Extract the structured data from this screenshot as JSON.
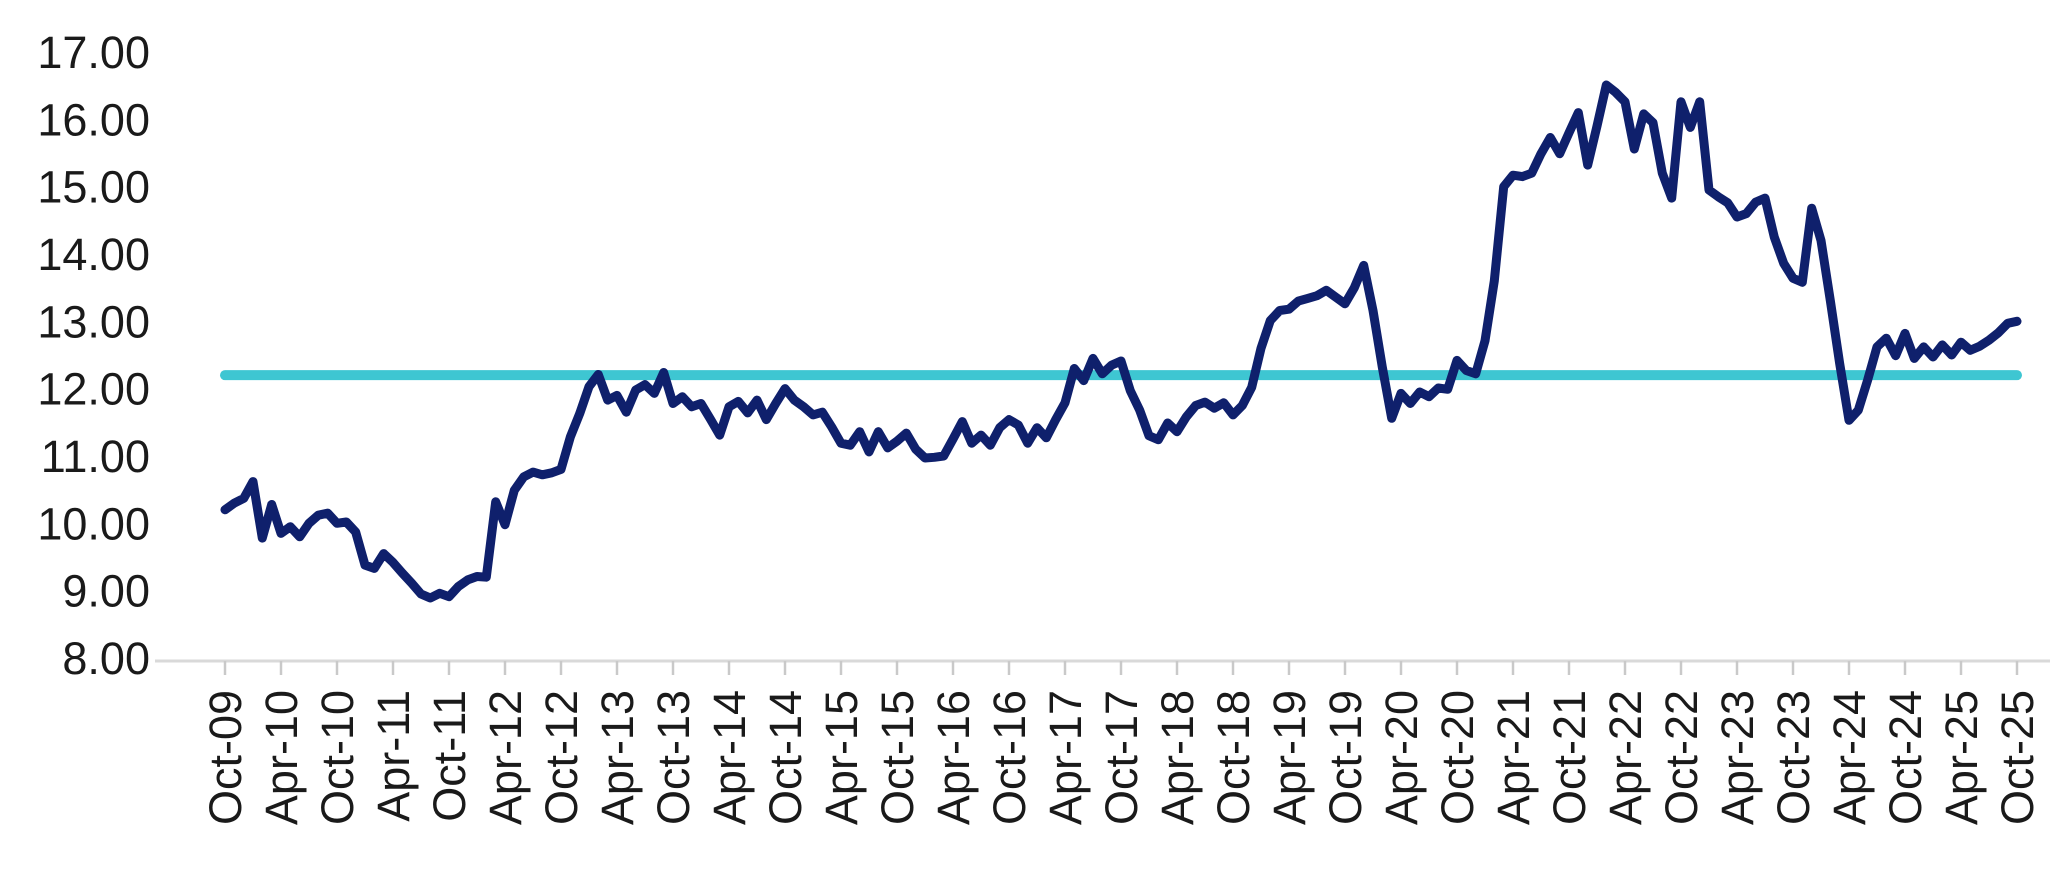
{
  "chart_data": {
    "type": "line",
    "title": "",
    "xlabel": "",
    "ylabel": "",
    "x_interval": "monthly",
    "x_start": "Oct-09",
    "x_end": "Oct-25",
    "ylim": [
      8,
      17
    ],
    "grid": false,
    "legend": "none",
    "ytick_labels": [
      "17.00",
      "16.00",
      "15.00",
      "14.00",
      "13.00",
      "12.00",
      "11.00",
      "10.00",
      "9.00",
      "8.00"
    ],
    "xtick_labels": [
      "Oct-09",
      "Apr-10",
      "Oct-10",
      "Apr-11",
      "Oct-11",
      "Apr-12",
      "Oct-12",
      "Apr-13",
      "Oct-13",
      "Apr-14",
      "Oct-14",
      "Apr-15",
      "Oct-15",
      "Apr-16",
      "Oct-16",
      "Apr-17",
      "Oct-17",
      "Apr-18",
      "Oct-18",
      "Apr-19",
      "Oct-19",
      "Apr-20",
      "Oct-20",
      "Apr-21",
      "Oct-21",
      "Apr-22",
      "Oct-22",
      "Apr-23",
      "Oct-23",
      "Apr-24",
      "Oct-24",
      "Apr-25",
      "Oct-25"
    ],
    "series": [
      {
        "name": "monthly-series",
        "color": "#0F206C",
        "values": [
          10.2,
          10.3,
          10.37,
          10.62,
          9.78,
          10.28,
          9.85,
          9.95,
          9.8,
          10.0,
          10.12,
          10.15,
          10.0,
          10.02,
          9.87,
          9.38,
          9.33,
          9.55,
          9.42,
          9.26,
          9.11,
          8.95,
          8.89,
          8.96,
          8.91,
          9.06,
          9.16,
          9.21,
          9.2,
          10.32,
          9.98,
          10.49,
          10.69,
          10.76,
          10.72,
          10.75,
          10.8,
          11.28,
          11.63,
          12.03,
          12.21,
          11.83,
          11.9,
          11.65,
          11.98,
          12.06,
          11.93,
          12.24,
          11.78,
          11.88,
          11.73,
          11.78,
          11.55,
          11.31,
          11.73,
          11.81,
          11.64,
          11.83,
          11.54,
          11.78,
          12.0,
          11.83,
          11.73,
          11.61,
          11.65,
          11.43,
          11.19,
          11.16,
          11.36,
          11.06,
          11.36,
          11.12,
          11.22,
          11.34,
          11.1,
          10.97,
          10.98,
          11.0,
          11.25,
          11.51,
          11.19,
          11.31,
          11.16,
          11.42,
          11.54,
          11.46,
          11.19,
          11.42,
          11.27,
          11.54,
          11.79,
          12.3,
          12.12,
          12.45,
          12.22,
          12.35,
          12.41,
          11.97,
          11.68,
          11.3,
          11.24,
          11.49,
          11.36,
          11.58,
          11.75,
          11.8,
          11.71,
          11.79,
          11.61,
          11.75,
          12.02,
          12.6,
          13.01,
          13.16,
          13.18,
          13.3,
          13.34,
          13.38,
          13.46,
          13.36,
          13.26,
          13.5,
          13.83,
          13.16,
          12.32,
          11.56,
          11.93,
          11.78,
          11.95,
          11.88,
          12.01,
          11.99,
          12.42,
          12.27,
          12.22,
          12.71,
          13.6,
          15.0,
          15.17,
          15.15,
          15.2,
          15.49,
          15.73,
          15.49,
          15.8,
          16.1,
          15.32,
          15.9,
          16.51,
          16.4,
          16.26,
          15.56,
          16.08,
          15.95,
          15.2,
          14.83,
          16.26,
          15.88,
          16.26,
          14.95,
          14.85,
          14.76,
          14.55,
          14.6,
          14.77,
          14.83,
          14.25,
          13.86,
          13.64,
          13.58,
          14.68,
          14.2,
          13.31,
          12.37,
          11.53,
          11.68,
          12.13,
          12.62,
          12.75,
          12.49,
          12.82,
          12.45,
          12.62,
          12.47,
          12.65,
          12.5,
          12.69,
          12.57,
          12.63,
          12.72,
          12.83,
          12.97,
          13.0
        ]
      },
      {
        "name": "reference-line",
        "color": "#3EC6D2",
        "constant_value": 12.2
      }
    ]
  },
  "colors": {
    "series_line": "#0F206C",
    "reference_line": "#3EC6D2",
    "axis_line": "#D9D9D9",
    "tick_mark": "#C9C9C9",
    "label_text": "#1A1A1A",
    "background": "#FFFFFF"
  }
}
